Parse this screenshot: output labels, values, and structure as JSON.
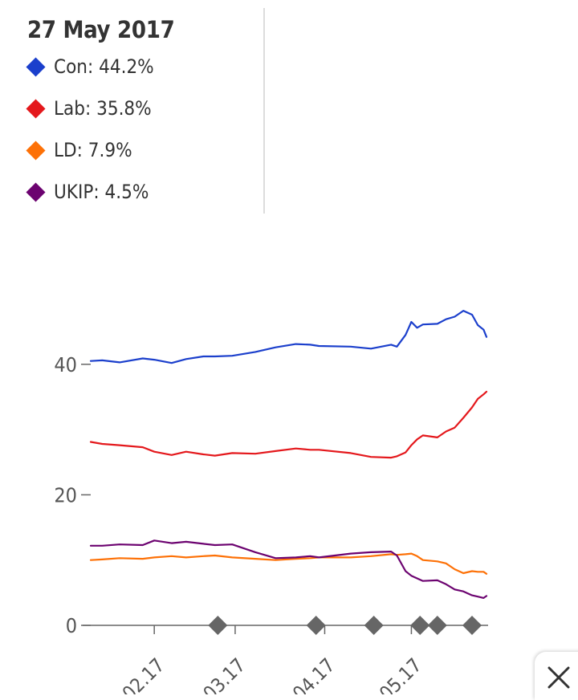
{
  "tooltip": {
    "date": "27 May 2017",
    "items": [
      {
        "label": "Con",
        "value": "44.2%",
        "color": "#1b3fcc"
      },
      {
        "label": "Lab",
        "value": "35.8%",
        "color": "#e4181c"
      },
      {
        "label": "LD",
        "value": "7.9%",
        "color": "#fd7107"
      },
      {
        "label": "UKIP",
        "value": "4.5%",
        "color": "#6c0370"
      }
    ]
  },
  "chart_data": {
    "type": "line",
    "title": "",
    "xlabel": "",
    "ylabel": "",
    "ylim": [
      0,
      50
    ],
    "xlim": [
      "2017-01-10",
      "2017-05-27"
    ],
    "yticks": [
      0,
      20,
      40
    ],
    "ytick_labels": [
      "0",
      "20",
      "40"
    ],
    "xticks": [
      "2017-02-01",
      "2017-03-01",
      "2017-04-01",
      "2017-05-01"
    ],
    "xtick_labels": [
      "02.17",
      "03.17",
      "04.17",
      "05.17"
    ],
    "grid": false,
    "series": [
      {
        "name": "Con",
        "color": "#1b3fcc",
        "x": [
          "2017-01-10",
          "2017-01-14",
          "2017-01-20",
          "2017-01-28",
          "2017-02-01",
          "2017-02-07",
          "2017-02-12",
          "2017-02-18",
          "2017-02-22",
          "2017-02-28",
          "2017-03-08",
          "2017-03-15",
          "2017-03-22",
          "2017-03-27",
          "2017-03-30",
          "2017-04-10",
          "2017-04-17",
          "2017-04-24",
          "2017-04-26",
          "2017-04-29",
          "2017-05-01",
          "2017-05-03",
          "2017-05-05",
          "2017-05-10",
          "2017-05-13",
          "2017-05-16",
          "2017-05-19",
          "2017-05-22",
          "2017-05-24",
          "2017-05-26",
          "2017-05-27"
        ],
        "values": [
          40.5,
          40.6,
          40.3,
          40.9,
          40.7,
          40.2,
          40.8,
          41.2,
          41.2,
          41.3,
          41.9,
          42.6,
          43.1,
          43.0,
          42.8,
          42.7,
          42.4,
          43.0,
          42.7,
          44.5,
          46.5,
          45.6,
          46.1,
          46.2,
          46.9,
          47.3,
          48.2,
          47.6,
          46.0,
          45.3,
          44.2
        ]
      },
      {
        "name": "Lab",
        "color": "#e4181c",
        "x": [
          "2017-01-10",
          "2017-01-14",
          "2017-01-20",
          "2017-01-28",
          "2017-02-01",
          "2017-02-07",
          "2017-02-12",
          "2017-02-18",
          "2017-02-22",
          "2017-02-28",
          "2017-03-08",
          "2017-03-15",
          "2017-03-22",
          "2017-03-27",
          "2017-03-30",
          "2017-04-10",
          "2017-04-17",
          "2017-04-24",
          "2017-04-26",
          "2017-04-29",
          "2017-05-01",
          "2017-05-03",
          "2017-05-05",
          "2017-05-10",
          "2017-05-13",
          "2017-05-16",
          "2017-05-19",
          "2017-05-22",
          "2017-05-24",
          "2017-05-26",
          "2017-05-27"
        ],
        "values": [
          28.1,
          27.8,
          27.6,
          27.3,
          26.6,
          26.1,
          26.6,
          26.2,
          26.0,
          26.4,
          26.3,
          26.7,
          27.1,
          26.9,
          26.9,
          26.4,
          25.8,
          25.7,
          25.9,
          26.5,
          27.6,
          28.5,
          29.1,
          28.8,
          29.7,
          30.3,
          31.8,
          33.4,
          34.7,
          35.4,
          35.8
        ]
      },
      {
        "name": "LD",
        "color": "#fd7107",
        "x": [
          "2017-01-10",
          "2017-01-14",
          "2017-01-20",
          "2017-01-28",
          "2017-02-01",
          "2017-02-07",
          "2017-02-12",
          "2017-02-18",
          "2017-02-22",
          "2017-02-28",
          "2017-03-08",
          "2017-03-15",
          "2017-03-22",
          "2017-03-27",
          "2017-03-30",
          "2017-04-10",
          "2017-04-17",
          "2017-04-24",
          "2017-04-26",
          "2017-04-29",
          "2017-05-01",
          "2017-05-03",
          "2017-05-05",
          "2017-05-10",
          "2017-05-13",
          "2017-05-16",
          "2017-05-19",
          "2017-05-22",
          "2017-05-24",
          "2017-05-26",
          "2017-05-27"
        ],
        "values": [
          10.0,
          10.1,
          10.3,
          10.2,
          10.4,
          10.6,
          10.4,
          10.6,
          10.7,
          10.4,
          10.2,
          10.0,
          10.2,
          10.3,
          10.4,
          10.4,
          10.6,
          10.9,
          10.8,
          10.9,
          11.0,
          10.6,
          10.0,
          9.8,
          9.5,
          8.6,
          8.0,
          8.3,
          8.2,
          8.2,
          7.9
        ]
      },
      {
        "name": "UKIP",
        "color": "#6c0370",
        "x": [
          "2017-01-10",
          "2017-01-14",
          "2017-01-20",
          "2017-01-28",
          "2017-02-01",
          "2017-02-07",
          "2017-02-12",
          "2017-02-18",
          "2017-02-22",
          "2017-02-28",
          "2017-03-08",
          "2017-03-15",
          "2017-03-22",
          "2017-03-27",
          "2017-03-30",
          "2017-04-10",
          "2017-04-17",
          "2017-04-24",
          "2017-04-26",
          "2017-04-29",
          "2017-05-01",
          "2017-05-03",
          "2017-05-05",
          "2017-05-10",
          "2017-05-13",
          "2017-05-16",
          "2017-05-19",
          "2017-05-22",
          "2017-05-24",
          "2017-05-26",
          "2017-05-27"
        ],
        "values": [
          12.2,
          12.2,
          12.4,
          12.3,
          13.0,
          12.6,
          12.8,
          12.5,
          12.3,
          12.4,
          11.2,
          10.3,
          10.4,
          10.6,
          10.4,
          11.0,
          11.2,
          11.3,
          10.7,
          8.3,
          7.6,
          7.2,
          6.8,
          6.9,
          6.3,
          5.5,
          5.2,
          4.6,
          4.4,
          4.2,
          4.5
        ]
      }
    ],
    "markers": {
      "color": "#666666",
      "dates": [
        "2017-02-23",
        "2017-03-29",
        "2017-04-18",
        "2017-05-04",
        "2017-05-10",
        "2017-05-22"
      ],
      "value": 0
    }
  }
}
